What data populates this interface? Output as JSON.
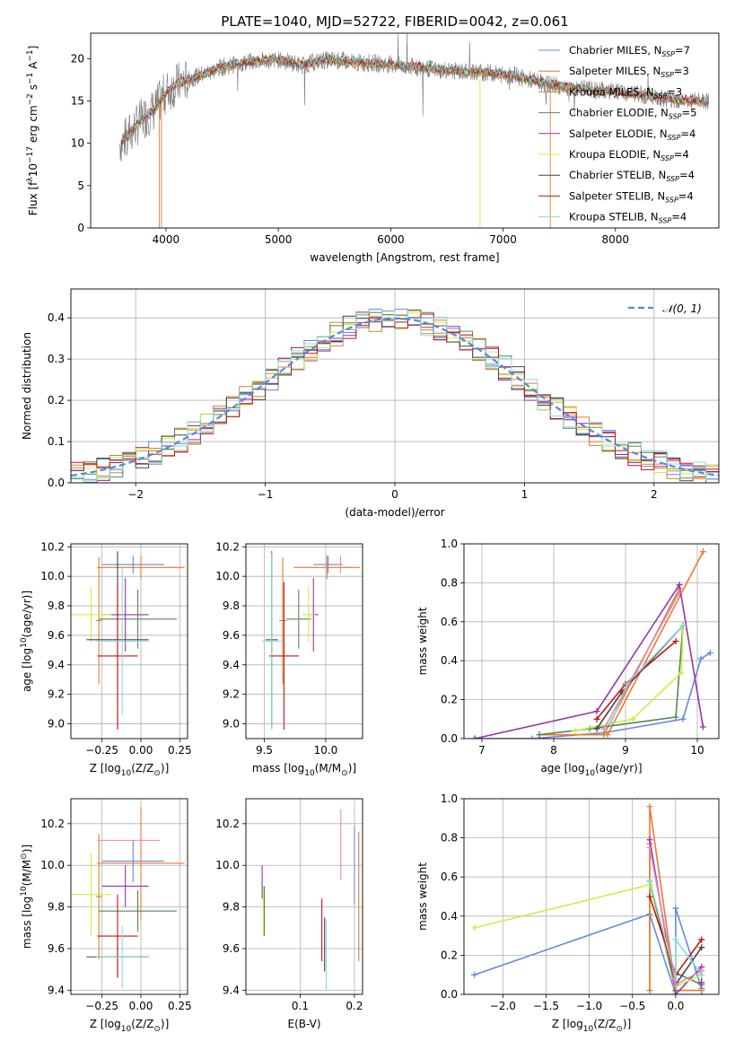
{
  "title": "PLATE=1040, MJD=52722, FIBERID=0042, z=0.061",
  "legend_spec": [
    {
      "name": "Chabrier MILES, N",
      "n": "7",
      "color": "#6688dd"
    },
    {
      "name": "Salpeter MILES, N",
      "n": "3",
      "color": "#ee7733"
    },
    {
      "name": "Kroupa MILES, N",
      "n": "3",
      "color": "#cc8833"
    },
    {
      "name": "Chabrier ELODIE, N",
      "n": "5",
      "color": "#558855"
    },
    {
      "name": "Salpeter ELODIE, N",
      "n": "4",
      "color": "#9933aa"
    },
    {
      "name": "Kroupa ELODIE, N",
      "n": "4",
      "color": "#ccee44"
    },
    {
      "name": "Chabrier STELIB, N",
      "n": "4",
      "color": "#444444"
    },
    {
      "name": "Salpeter STELIB, N",
      "n": "4",
      "color": "#cc1111"
    },
    {
      "name": "Kroupa STELIB, N",
      "n": "4",
      "color": "#88dddd"
    }
  ],
  "legend_sub": "SSP",
  "legend_hist": "𝒩(0, 1)",
  "chart_data": [
    {
      "id": "spectrum",
      "type": "line",
      "xlabel": "wavelength [Angstrom, rest frame]",
      "ylabel_parts": [
        "Flux [f",
        "λ",
        "10",
        "−17",
        " erg cm",
        "−2",
        " s",
        "−1",
        " A",
        "−1",
        "]"
      ],
      "xlim": [
        3330,
        8920
      ],
      "ylim": [
        0,
        23
      ],
      "xticks": [
        4000,
        5000,
        6000,
        7000,
        8000
      ],
      "yticks": [
        0,
        5,
        10,
        15,
        20
      ],
      "grid": false,
      "data_series": "gray",
      "x": [
        3600,
        3700,
        3800,
        3900,
        4000,
        4100,
        4200,
        4300,
        4400,
        4500,
        4600,
        4700,
        4800,
        4900,
        5000,
        5100,
        5200,
        5300,
        5400,
        5500,
        5600,
        5700,
        5800,
        5900,
        6000,
        6100,
        6200,
        6300,
        6400,
        6500,
        6600,
        6700,
        6800,
        6900,
        7000,
        7100,
        7200,
        7300,
        7400,
        7500,
        7600,
        7700,
        7800,
        7900,
        8000,
        8100,
        8200,
        8300,
        8400,
        8500,
        8600,
        8700,
        8800
      ],
      "y": [
        10,
        11.5,
        13,
        14,
        16,
        17,
        17.5,
        18,
        18.5,
        19,
        19.3,
        19.5,
        19.7,
        19.8,
        19.8,
        19.6,
        19.2,
        19.5,
        19.8,
        19.8,
        19.7,
        19.5,
        19.5,
        19.4,
        19.3,
        19.1,
        19,
        18.9,
        18.7,
        18.6,
        18.5,
        18.4,
        18.4,
        18.3,
        18.1,
        18,
        17.6,
        17.3,
        17,
        16.8,
        16.6,
        16.5,
        16.3,
        16.2,
        16.1,
        15.9,
        15.8,
        15.6,
        15.4,
        15.2,
        15.1,
        15,
        14.9
      ]
    },
    {
      "id": "residual_hist",
      "type": "step",
      "xlabel": "(data-model)/error",
      "ylabel": "Normed distribution",
      "xlim": [
        -2.5,
        2.5
      ],
      "ylim": [
        0,
        0.47
      ],
      "xticks": [
        -2,
        -1,
        0,
        1,
        2
      ],
      "yticks": [
        0,
        0.1,
        0.2,
        0.3,
        0.4
      ],
      "grid": true,
      "bin_width": 0.1,
      "gaussian": {
        "mean": 0,
        "sigma": 1,
        "style": "dashed"
      }
    },
    {
      "id": "age_vs_Z",
      "type": "errorbar",
      "xlabel_parts": [
        "Z [log",
        "10",
        "(Z/Z",
        "⊙",
        ")]"
      ],
      "ylabel_parts": [
        "age  [log",
        "10",
        "(age/yr)]"
      ],
      "xlim": [
        -0.45,
        0.3
      ],
      "ylim": [
        8.9,
        10.22
      ],
      "xticks": [
        -0.25,
        0,
        0.25
      ],
      "xtick_labels": [
        "−0.25",
        "0.00",
        "0.25"
      ],
      "yticks": [
        9.0,
        9.2,
        9.4,
        9.6,
        9.8,
        10.0,
        10.2
      ],
      "grid": true,
      "points": [
        {
          "color": "#6688dd",
          "x": -0.05,
          "xerr": 0.2,
          "y": 10.08,
          "yerr": 0.06
        },
        {
          "color": "#ee7733",
          "x": 0.0,
          "xerr": 0.28,
          "y": 10.06,
          "yerr": 0.08
        },
        {
          "color": "#cc8833",
          "x": -0.27,
          "xerr": 0.02,
          "y": 9.7,
          "yerr": 0.43
        },
        {
          "color": "#558855",
          "x": -0.02,
          "xerr": 0.25,
          "y": 9.71,
          "yerr": 0.2
        },
        {
          "color": "#9933aa",
          "x": -0.1,
          "xerr": 0.15,
          "y": 9.74,
          "yerr": 0.25
        },
        {
          "color": "#ccee44",
          "x": -0.32,
          "xerr": 0.13,
          "y": 9.74,
          "yerr": 0.19
        },
        {
          "color": "#444444",
          "x": -0.15,
          "xerr": 0.2,
          "y": 9.57,
          "yerr": 0.6
        },
        {
          "color": "#cc1111",
          "x": -0.15,
          "xerr": 0.13,
          "y": 9.46,
          "yerr": 0.5
        },
        {
          "color": "#88dddd",
          "x": -0.12,
          "xerr": 0.17,
          "y": 9.56,
          "yerr": 0.5
        }
      ]
    },
    {
      "id": "age_vs_mass",
      "type": "errorbar",
      "xlabel_parts": [
        "mass [log",
        "10",
        "(M/M",
        "⊙",
        ")]"
      ],
      "xlim": [
        9.35,
        10.3
      ],
      "ylim": [
        8.9,
        10.22
      ],
      "xticks": [
        9.5,
        10.0
      ],
      "xtick_labels": [
        "9.5",
        "10.0"
      ],
      "yticks": [
        9.0,
        9.2,
        9.4,
        9.6,
        9.8,
        10.0,
        10.2
      ],
      "grid": true,
      "points": [
        {
          "color": "#6688dd",
          "x": 10.02,
          "xerr": 0.12,
          "y": 10.08,
          "yerr": 0.06
        },
        {
          "color": "#ee7733",
          "x": 10.01,
          "xerr": 0.27,
          "y": 10.06,
          "yerr": 0.08
        },
        {
          "color": "#cc8833",
          "x": 9.65,
          "xerr": 0.03,
          "y": 9.7,
          "yerr": 0.43
        },
        {
          "color": "#558855",
          "x": 9.78,
          "xerr": 0.1,
          "y": 9.71,
          "yerr": 0.2
        },
        {
          "color": "#9933aa",
          "x": 9.9,
          "xerr": 0.04,
          "y": 9.74,
          "yerr": 0.25
        },
        {
          "color": "#ccee44",
          "x": 9.86,
          "xerr": 0.05,
          "y": 9.74,
          "yerr": 0.19
        },
        {
          "color": "#444444",
          "x": 9.56,
          "xerr": 0.05,
          "y": 9.57,
          "yerr": 0.6
        },
        {
          "color": "#cc1111",
          "x": 9.66,
          "xerr": 0.12,
          "y": 9.46,
          "yerr": 0.5
        },
        {
          "color": "#88dddd",
          "x": 9.56,
          "xerr": 0.08,
          "y": 9.56,
          "yerr": 0.6
        },
        {
          "color": "#e088bb",
          "x": 10.12,
          "xerr": 0.02,
          "y": 10.08,
          "yerr": 0.06
        }
      ]
    },
    {
      "id": "mass_weight_vs_age",
      "type": "line",
      "xlabel_parts": [
        "age  [log",
        "10",
        "(age/yr)]"
      ],
      "ylabel": "mass weight",
      "xlim": [
        6.75,
        10.3
      ],
      "ylim": [
        0,
        1.0
      ],
      "xticks": [
        7,
        8,
        9,
        10
      ],
      "yticks": [
        0,
        0.2,
        0.4,
        0.6,
        0.8,
        1.0
      ],
      "grid": true,
      "series": [
        {
          "color": "#6688dd",
          "x": [
            6.9,
            7.7,
            8.7,
            9.8,
            10.05,
            10.18
          ],
          "y": [
            0.0,
            0.0,
            0.03,
            0.1,
            0.41,
            0.44
          ]
        },
        {
          "color": "#ee7733",
          "x": [
            7.8,
            8.75,
            10.08
          ],
          "y": [
            0.02,
            0.02,
            0.96
          ]
        },
        {
          "color": "#cc8833",
          "x": [
            8.7,
            9.75
          ],
          "y": [
            0.02,
            0.77
          ]
        },
        {
          "color": "#558855",
          "x": [
            7.8,
            8.5,
            9.7,
            9.8
          ],
          "y": [
            0.02,
            0.05,
            0.11,
            0.58
          ]
        },
        {
          "color": "#9933aa",
          "x": [
            6.9,
            8.6,
            9.75,
            10.08
          ],
          "y": [
            0.0,
            0.14,
            0.79,
            0.06
          ]
        },
        {
          "color": "#ccee44",
          "x": [
            8.3,
            9.1,
            9.78,
            9.8
          ],
          "y": [
            0.04,
            0.1,
            0.34,
            0.56
          ]
        },
        {
          "color": "#444444",
          "x": [
            8.6,
            8.95,
            9.8
          ],
          "y": [
            0.05,
            0.24,
            0.58
          ]
        },
        {
          "color": "#cc1111",
          "x": [
            8.6,
            9.0,
            9.7
          ],
          "y": [
            0.1,
            0.28,
            0.5
          ]
        },
        {
          "color": "#88dddd",
          "x": [
            8.8,
            9.02,
            9.8
          ],
          "y": [
            0.08,
            0.28,
            0.58
          ]
        },
        {
          "color": "#e088bb",
          "x": [
            8.7,
            9.75
          ],
          "y": [
            0.05,
            0.75
          ]
        }
      ]
    },
    {
      "id": "mass_vs_Z",
      "type": "errorbar",
      "xlabel_parts": [
        "Z [log",
        "10",
        "(Z/Z",
        "⊙",
        ")]"
      ],
      "ylabel_parts": [
        "mass [log",
        "10",
        "(M/M",
        "⊙",
        ")]"
      ],
      "xlim": [
        -0.45,
        0.3
      ],
      "ylim": [
        9.38,
        10.32
      ],
      "xticks": [
        -0.25,
        0,
        0.25
      ],
      "xtick_labels": [
        "−0.25",
        "0.00",
        "0.25"
      ],
      "yticks": [
        9.4,
        9.6,
        9.8,
        10.0,
        10.2
      ],
      "grid": true,
      "points": [
        {
          "color": "#6688dd",
          "x": -0.05,
          "xerr": 0.2,
          "y": 10.02,
          "yerr": 0.1
        },
        {
          "color": "#ee7733",
          "x": 0.0,
          "xerr": 0.28,
          "y": 10.01,
          "yerr": 0.27
        },
        {
          "color": "#cc8833",
          "x": -0.27,
          "xerr": 0.02,
          "y": 9.85,
          "yerr": 0.3
        },
        {
          "color": "#558855",
          "x": -0.02,
          "xerr": 0.25,
          "y": 9.78,
          "yerr": 0.1
        },
        {
          "color": "#9933aa",
          "x": -0.1,
          "xerr": 0.15,
          "y": 9.9,
          "yerr": 0.1
        },
        {
          "color": "#ccee44",
          "x": -0.32,
          "xerr": 0.13,
          "y": 9.86,
          "yerr": 0.2
        },
        {
          "color": "#444444",
          "x": -0.15,
          "xerr": 0.2,
          "y": 9.56,
          "yerr": 0.1
        },
        {
          "color": "#cc1111",
          "x": -0.15,
          "xerr": 0.13,
          "y": 9.66,
          "yerr": 0.2
        },
        {
          "color": "#88dddd",
          "x": -0.12,
          "xerr": 0.17,
          "y": 9.56,
          "yerr": 0.15
        },
        {
          "color": "#e088bb",
          "x": -0.08,
          "xerr": 0.2,
          "y": 10.12,
          "yerr": 0.0
        }
      ]
    },
    {
      "id": "mass_vs_ebv",
      "type": "errorbar",
      "xlabel": "E(B-V)",
      "xlim": [
        0.0,
        0.215
      ],
      "ylim": [
        9.38,
        10.32
      ],
      "xticks": [
        0.1,
        0.2
      ],
      "xtick_labels": [
        "0.1",
        "0.2"
      ],
      "yticks": [
        9.4,
        9.6,
        9.8,
        10.0,
        10.2
      ],
      "grid": true,
      "points": [
        {
          "color": "#9933aa",
          "x": 0.03,
          "xerr": 0,
          "y": 9.92,
          "yerr": 0.08
        },
        {
          "color": "#ccee44",
          "x": 0.032,
          "xerr": 0,
          "y": 9.78,
          "yerr": 0.12
        },
        {
          "color": "#558855",
          "x": 0.034,
          "xerr": 0,
          "y": 9.78,
          "yerr": 0.12
        },
        {
          "color": "#cc1111",
          "x": 0.14,
          "xerr": 0,
          "y": 9.69,
          "yerr": 0.15
        },
        {
          "color": "#444444",
          "x": 0.145,
          "xerr": 0,
          "y": 9.62,
          "yerr": 0.13
        },
        {
          "color": "#88dddd",
          "x": 0.148,
          "xerr": 0,
          "y": 9.57,
          "yerr": 0.17
        },
        {
          "color": "#e088bb",
          "x": 0.175,
          "xerr": 0,
          "y": 10.1,
          "yerr": 0.17
        },
        {
          "color": "#6688dd",
          "x": 0.2,
          "xerr": 0,
          "y": 10.0,
          "yerr": 0.19
        },
        {
          "color": "#ee7733",
          "x": 0.208,
          "xerr": 0,
          "y": 9.85,
          "yerr": 0.31
        }
      ]
    },
    {
      "id": "mass_weight_vs_Z",
      "type": "line",
      "xlabel_parts": [
        "Z [log",
        "10",
        "(Z/Z",
        "⊙",
        ")]"
      ],
      "ylabel": "mass weight",
      "xlim": [
        -2.45,
        0.5
      ],
      "ylim": [
        0,
        1.0
      ],
      "xticks": [
        -2.0,
        -1.5,
        -1.0,
        -0.5,
        0.0
      ],
      "xtick_labels": [
        "−2.0",
        "−1.5",
        "−1.0",
        "−0.5",
        "0.0"
      ],
      "yticks": [
        0,
        0.2,
        0.4,
        0.6,
        0.8,
        1.0
      ],
      "grid": true,
      "series": [
        {
          "color": "#6688dd",
          "x": [
            -2.33,
            -0.3,
            0.0,
            0.0,
            0.3,
            0.3
          ],
          "y": [
            0.1,
            0.41,
            0.0,
            0.44,
            0.03,
            0.0
          ]
        },
        {
          "color": "#ee7733",
          "x": [
            -0.3,
            -0.3,
            0.0,
            0.3
          ],
          "y": [
            0.02,
            0.96,
            0.02,
            0.02
          ]
        },
        {
          "color": "#cc8833",
          "x": [
            -0.3,
            -0.3,
            0.0
          ],
          "y": [
            0.02,
            0.77,
            0.02
          ]
        },
        {
          "color": "#558855",
          "x": [
            -0.3,
            0.0,
            0.0,
            0.3
          ],
          "y": [
            0.58,
            0.02,
            0.11,
            0.05
          ]
        },
        {
          "color": "#9933aa",
          "x": [
            -0.3,
            0.0,
            0.3,
            0.3
          ],
          "y": [
            0.79,
            0.0,
            0.14,
            0.06
          ]
        },
        {
          "color": "#ccee44",
          "x": [
            -2.33,
            -0.3,
            0.0,
            0.3
          ],
          "y": [
            0.34,
            0.56,
            0.04,
            0.1
          ]
        },
        {
          "color": "#444444",
          "x": [
            -0.3,
            0.0,
            0.3
          ],
          "y": [
            0.58,
            0.05,
            0.24
          ]
        },
        {
          "color": "#cc1111",
          "x": [
            -0.3,
            0.0,
            0.3
          ],
          "y": [
            0.5,
            0.1,
            0.28
          ]
        },
        {
          "color": "#88dddd",
          "x": [
            -0.3,
            0.0,
            0.0,
            0.3
          ],
          "y": [
            0.58,
            0.08,
            0.28,
            0.1
          ]
        },
        {
          "color": "#e088bb",
          "x": [
            -0.3,
            0.0,
            0.3
          ],
          "y": [
            0.75,
            0.05,
            0.12
          ]
        }
      ]
    }
  ]
}
